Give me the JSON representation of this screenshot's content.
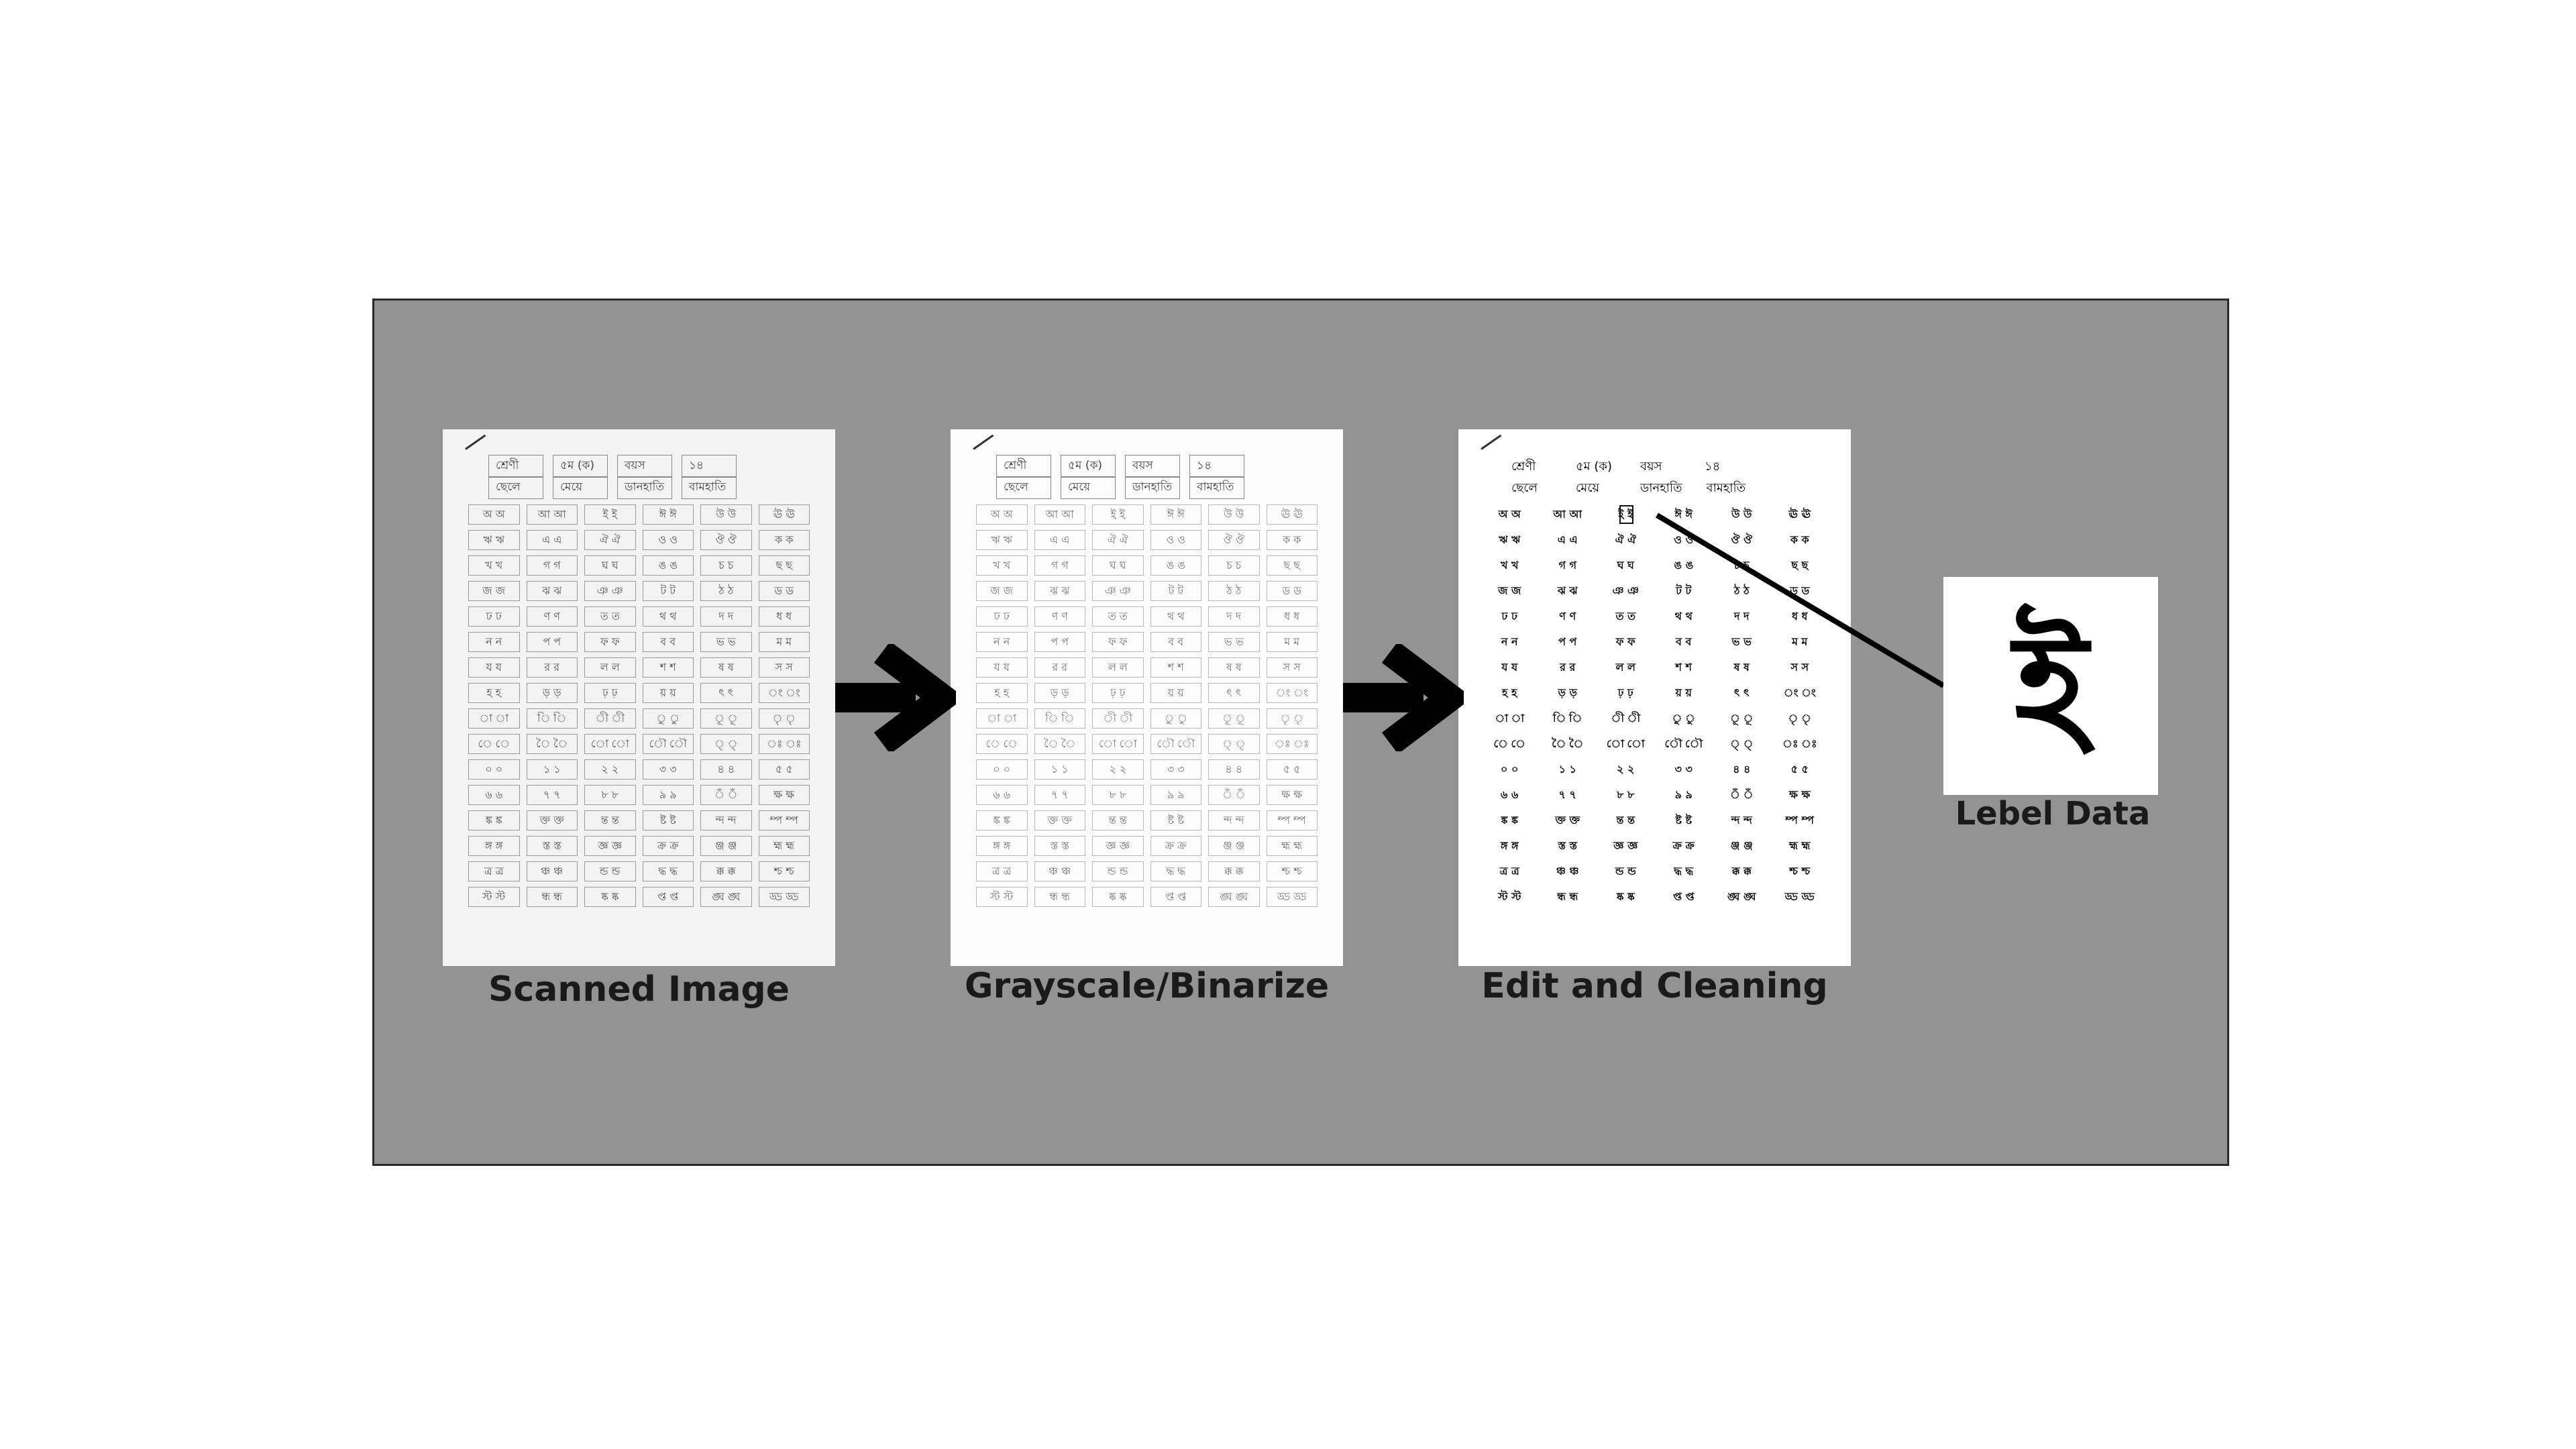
{
  "captions": {
    "scanned": "Scanned Image",
    "grayscale": "Grayscale/Binarize",
    "cleaning": "Edit and Cleaning",
    "label": "Lebel Data"
  },
  "form_header": {
    "class_label": "শ্রেণী",
    "class_value": "৫ম (ক)",
    "age_label": "বয়স",
    "age_value": "১৪",
    "boy": "ছেলে",
    "girl": "মেয়ে",
    "right_hand": "ডানহাতি",
    "left_hand": "বামহাতি"
  },
  "form_grid": [
    "অ অ",
    "আ আ",
    "ই ই",
    "ঈ ঈ",
    "উ উ",
    "ঊ ঊ",
    "ঋ ঋ",
    "এ এ",
    "ঐ ঐ",
    "ও ও",
    "ঔ ঔ",
    "ক ক",
    "খ খ",
    "গ গ",
    "ঘ ঘ",
    "ঙ ঙ",
    "চ চ",
    "ছ ছ",
    "জ জ",
    "ঝ ঝ",
    "ঞ ঞ",
    "ট ট",
    "ঠ ঠ",
    "ড ড",
    "ঢ ঢ",
    "ণ ণ",
    "ত ত",
    "থ থ",
    "দ দ",
    "ধ ধ",
    "ন ন",
    "প প",
    "ফ ফ",
    "ব ব",
    "ভ ভ",
    "ম ম",
    "য য",
    "র র",
    "ল ল",
    "শ শ",
    "ষ ষ",
    "স স",
    "হ হ",
    "ড় ড়",
    "ঢ় ঢ়",
    "য় য়",
    "ৎ ৎ",
    "ং ং",
    "া া",
    "ি ি",
    "ী ী",
    "ু ু",
    "ূ ূ",
    "ৃ ৃ",
    "ে ে",
    "ৈ ৈ",
    "ো ো",
    "ৌ ৌ",
    "্ ্",
    "ঃ ঃ",
    "০ ০",
    "১ ১",
    "২ ২",
    "৩ ৩",
    "৪ ৪",
    "৫ ৫",
    "৬ ৬",
    "৭ ৭",
    "৮ ৮",
    "৯ ৯",
    "ঁ ঁ",
    "ক্ষ ক্ষ",
    "ঙ্ক ঙ্ক",
    "ক্ত ক্ত",
    "ন্ত ন্ত",
    "ষ্ট ষ্ট",
    "ন্দ ন্দ",
    "ম্প ম্প",
    "ঙ্গ ঙ্গ",
    "স্ত স্ত",
    "জ্ঞ জ্ঞ",
    "ক্র ক্র",
    "ঞ্জ ঞ্জ",
    "হ্ম হ্ম",
    "ত্র ত্র",
    "ঞ্চ ঞ্চ",
    "ন্ড ন্ড",
    "দ্ধ দ্ধ",
    "ক্ক ক্ক",
    "শ্চ শ্চ",
    "স্ট স্ট",
    "ন্ধ ন্ধ",
    "ষ্ক ষ্ক",
    "প্ত প্ত",
    "ঙ্ঘ ঙ্ঘ",
    "ড্ড ড্ড"
  ],
  "highlight_index": 2,
  "label_glyph": "ই"
}
